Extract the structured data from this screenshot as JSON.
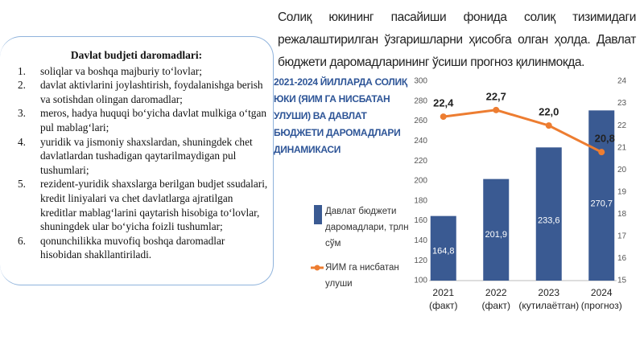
{
  "header": {
    "title": "Солиқ юкининг пасайиши фонида солиқ тизимидаги режалаштирилган ўзгаришларни ҳисобга олган ҳолда. Давлат бюджети даромадларининг ўсиши прогноз қилинмокда."
  },
  "list": {
    "heading": "Davlat budjeti daromadlari:",
    "items": [
      {
        "number": "1.",
        "text": "soliqlar va boshqa majburiy to‘lovlar;"
      },
      {
        "number": "2.",
        "text": "davlat aktivlarini joylashtirish, foydalanishga berish va sotishdan olingan daromadlar;"
      },
      {
        "number": "3.",
        "text": "meros, hadya huquqi bo‘yicha davlat mulkiga o‘tgan pul mablag‘lari;"
      },
      {
        "number": "4.",
        "text": "yuridik va jismoniy shaxslardan, shuningdek chet davlatlardan tushadigan qaytarilmaydigan pul tushumlari;"
      },
      {
        "number": "5.",
        "text": "rezident-yuridik shaxslarga berilgan budjet ssudalari, kredit liniyalari va chet davlatlarga ajratilgan kreditlar mablag‘larini qaytarish hisobiga to‘lovlar, shuningdek ular bo‘yicha foizli tushumlar;"
      },
      {
        "number": "6.",
        "text": "qonunchilikka muvofiq boshqa daromadlar hisobidan shakllantiriladi."
      }
    ]
  },
  "chart_data": {
    "type": "bar_line",
    "title": "2021-2024 ЙИЛЛАРДА СОЛИҚ ЮКИ (ЯИМ ГА НИСБАТАН УЛУШИ) ВА ДАВЛАТ БЮДЖЕТИ ДАРОМАДЛАРИ ДИНАМИКАСИ",
    "categories": [
      "2021 (факт)",
      "2022 (факт)",
      "2023 (кутилаётган)",
      "2024 (прогноз)"
    ],
    "series": [
      {
        "name": "Давлат бюджети даромадлари, трлн сўм",
        "color": "#3a5a92",
        "values": [
          164.8,
          201.9,
          233.6,
          270.7
        ],
        "value_labels": [
          "164,8",
          "201,9",
          "233,6",
          "270,7"
        ]
      },
      {
        "name": "ЯИМ га нисбатан улуши",
        "color": "#ed7d31",
        "axis": "y2",
        "values": [
          22.4,
          22.7,
          22.0,
          20.8
        ],
        "value_labels": [
          "22,4",
          "22,7",
          "22,0",
          "20,8"
        ]
      }
    ],
    "ylim": [
      100,
      300
    ],
    "yticks": [
      100,
      120,
      140,
      160,
      180,
      200,
      220,
      240,
      260,
      280,
      300
    ],
    "y2lim": [
      15,
      24
    ],
    "y2ticks": [
      15,
      16,
      17,
      18,
      19,
      20,
      21,
      22,
      23,
      24
    ],
    "grid": false
  }
}
